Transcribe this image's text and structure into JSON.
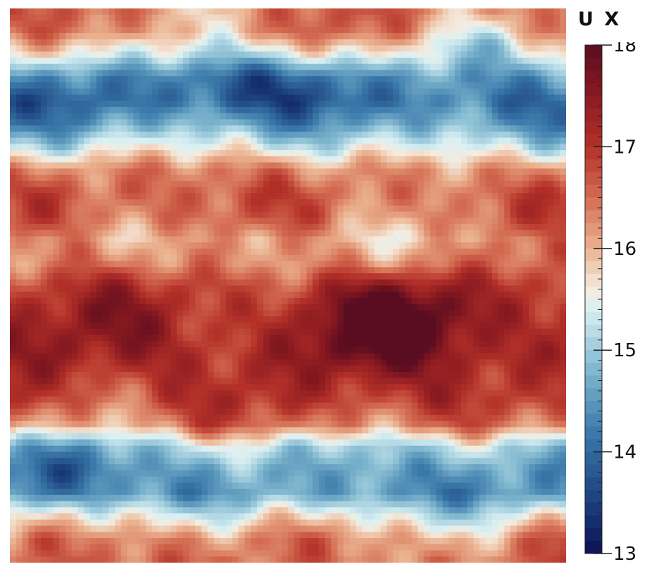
{
  "chart_data": {
    "type": "heatmap",
    "title": "",
    "variable": "U X",
    "color_range": [
      13,
      18
    ],
    "colormap": "Rainbow Desaturated diverging (blue–white–red)",
    "colorbar_ticks": [
      13,
      14,
      15,
      16,
      17,
      18
    ],
    "colormap_stops": [
      {
        "value": 13.0,
        "color": "#0b1155"
      },
      {
        "value": 13.6,
        "color": "#1f4882"
      },
      {
        "value": 14.2,
        "color": "#3b7aab"
      },
      {
        "value": 14.8,
        "color": "#7fb7cf"
      },
      {
        "value": 15.4,
        "color": "#d9f0f3"
      },
      {
        "value": 15.6,
        "color": "#f4ece0"
      },
      {
        "value": 16.0,
        "color": "#ebb391"
      },
      {
        "value": 16.5,
        "color": "#d46c52"
      },
      {
        "value": 17.0,
        "color": "#b43129"
      },
      {
        "value": 17.5,
        "color": "#8a1a20"
      },
      {
        "value": 18.0,
        "color": "#5a0d20"
      }
    ],
    "field_rows_top_to_bottom": [
      16.4,
      16.3,
      15.6,
      14.6,
      14.2,
      14.6,
      15.4,
      16.3,
      16.6,
      16.5,
      16.1,
      16.3,
      16.9,
      17.2,
      17.3,
      17.3,
      17.1,
      16.9,
      16.4,
      15.1,
      14.6,
      14.5,
      15.5,
      16.3,
      16.5
    ]
  },
  "colorbar": {
    "title": "U X",
    "labels": [
      "18",
      "17",
      "16",
      "15",
      "14",
      "13"
    ]
  }
}
